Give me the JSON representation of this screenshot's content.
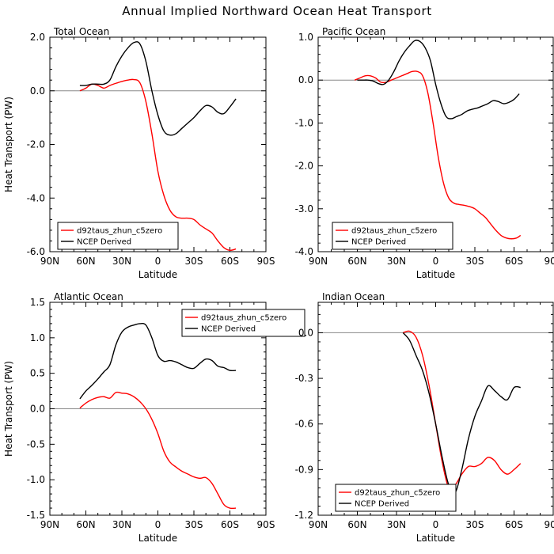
{
  "figure_title": "Annual Implied Northward Ocean Heat Transport",
  "colors": {
    "model": "#ff0000",
    "observed": "#000000",
    "zero_line": "#888888"
  },
  "chart_data": [
    {
      "type": "line",
      "title": "Total Ocean",
      "xlabel": "Latitude",
      "ylabel": "Heat Transport (PW)",
      "xlim": [
        90,
        -90
      ],
      "ylim": [
        -6.0,
        2.0
      ],
      "x_ticks": [
        90,
        60,
        30,
        0,
        -30,
        -60,
        -90
      ],
      "x_tick_labels": [
        "90N",
        "60N",
        "30N",
        "0",
        "30S",
        "60S",
        "90S"
      ],
      "y_ticks": [
        2.0,
        0.0,
        -2.0,
        -4.0,
        -6.0
      ],
      "y_tick_labels": [
        "2.0",
        "0.0",
        "-2.0",
        "-4.0",
        "-6.0"
      ],
      "series": [
        {
          "name": "d92taus_zhun_c5zero",
          "color": "#ff0000",
          "x": [
            65,
            60,
            55,
            50,
            45,
            40,
            35,
            30,
            25,
            20,
            15,
            10,
            5,
            0,
            -5,
            -10,
            -15,
            -20,
            -25,
            -30,
            -35,
            -40,
            -45,
            -50,
            -55,
            -60,
            -65
          ],
          "y": [
            0.0,
            0.1,
            0.25,
            0.2,
            0.1,
            0.2,
            0.28,
            0.35,
            0.4,
            0.42,
            0.3,
            -0.4,
            -1.6,
            -3.0,
            -3.9,
            -4.45,
            -4.7,
            -4.75,
            -4.75,
            -4.8,
            -5.0,
            -5.15,
            -5.3,
            -5.6,
            -5.85,
            -5.95,
            -5.9
          ]
        },
        {
          "name": "NCEP Derived",
          "color": "#000000",
          "x": [
            65,
            60,
            55,
            50,
            45,
            40,
            35,
            30,
            25,
            20,
            15,
            10,
            5,
            0,
            -5,
            -10,
            -15,
            -20,
            -25,
            -30,
            -35,
            -40,
            -45,
            -50,
            -55,
            -60,
            -65
          ],
          "y": [
            0.2,
            0.2,
            0.25,
            0.25,
            0.25,
            0.4,
            0.9,
            1.3,
            1.6,
            1.8,
            1.75,
            1.1,
            0.0,
            -0.9,
            -1.5,
            -1.65,
            -1.6,
            -1.4,
            -1.2,
            -1.0,
            -0.75,
            -0.55,
            -0.6,
            -0.8,
            -0.85,
            -0.6,
            -0.3
          ]
        }
      ]
    },
    {
      "type": "line",
      "title": "Pacific Ocean",
      "xlabel": "Latitude",
      "ylabel": "",
      "xlim": [
        90,
        -90
      ],
      "ylim": [
        -4.0,
        1.0
      ],
      "x_ticks": [
        90,
        60,
        30,
        0,
        -30,
        -60,
        -90
      ],
      "x_tick_labels": [
        "90N",
        "60N",
        "30N",
        "0",
        "30S",
        "60S",
        "90S"
      ],
      "y_ticks": [
        1.0,
        0.0,
        -1.0,
        -2.0,
        -3.0,
        -4.0
      ],
      "y_tick_labels": [
        "1.0",
        "0.0",
        "-1.0",
        "-2.0",
        "-3.0",
        "-4.0"
      ],
      "series": [
        {
          "name": "d92taus_zhun_c5zero",
          "color": "#ff0000",
          "x": [
            62,
            58,
            54,
            50,
            46,
            42,
            38,
            34,
            30,
            26,
            22,
            18,
            14,
            10,
            6,
            2,
            -2,
            -6,
            -10,
            -14,
            -18,
            -22,
            -26,
            -30,
            -34,
            -38,
            -42,
            -46,
            -50,
            -54,
            -58,
            -62,
            -65
          ],
          "y": [
            0.0,
            0.05,
            0.1,
            0.1,
            0.05,
            -0.05,
            -0.05,
            0.0,
            0.05,
            0.1,
            0.15,
            0.2,
            0.2,
            0.1,
            -0.3,
            -1.0,
            -1.8,
            -2.4,
            -2.75,
            -2.87,
            -2.9,
            -2.92,
            -2.95,
            -3.0,
            -3.1,
            -3.2,
            -3.35,
            -3.5,
            -3.62,
            -3.68,
            -3.7,
            -3.68,
            -3.62
          ]
        },
        {
          "name": "NCEP Derived",
          "color": "#000000",
          "x": [
            60,
            56,
            52,
            48,
            44,
            40,
            36,
            32,
            28,
            24,
            20,
            16,
            12,
            8,
            4,
            0,
            -4,
            -8,
            -12,
            -16,
            -20,
            -24,
            -28,
            -32,
            -36,
            -40,
            -44,
            -48,
            -52,
            -56,
            -60,
            -64
          ],
          "y": [
            0.0,
            0.0,
            0.0,
            -0.02,
            -0.08,
            -0.1,
            0.0,
            0.2,
            0.45,
            0.65,
            0.8,
            0.92,
            0.9,
            0.75,
            0.45,
            -0.1,
            -0.55,
            -0.85,
            -0.9,
            -0.85,
            -0.8,
            -0.72,
            -0.68,
            -0.65,
            -0.6,
            -0.55,
            -0.48,
            -0.5,
            -0.55,
            -0.52,
            -0.45,
            -0.32
          ]
        }
      ]
    },
    {
      "type": "line",
      "title": "Atlantic Ocean",
      "xlabel": "Latitude",
      "ylabel": "Heat Transport (PW)",
      "xlim": [
        90,
        -90
      ],
      "ylim": [
        -1.5,
        1.5
      ],
      "x_ticks": [
        90,
        60,
        30,
        0,
        -30,
        -60,
        -90
      ],
      "x_tick_labels": [
        "90N",
        "60N",
        "30N",
        "0",
        "30S",
        "60S",
        "90S"
      ],
      "y_ticks": [
        1.5,
        1.0,
        0.5,
        0.0,
        -0.5,
        -1.0,
        -1.5
      ],
      "y_tick_labels": [
        "1.5",
        "1.0",
        "0.5",
        "0.0",
        "-0.5",
        "-1.0",
        "-1.5"
      ],
      "series": [
        {
          "name": "d92taus_zhun_c5zero",
          "color": "#ff0000",
          "x": [
            65,
            60,
            55,
            50,
            45,
            40,
            35,
            30,
            25,
            20,
            15,
            10,
            5,
            0,
            -5,
            -10,
            -15,
            -20,
            -25,
            -30,
            -35,
            -40,
            -45,
            -50,
            -55,
            -60,
            -65
          ],
          "y": [
            0.01,
            0.08,
            0.13,
            0.16,
            0.17,
            0.15,
            0.23,
            0.22,
            0.21,
            0.17,
            0.1,
            0.0,
            -0.15,
            -0.35,
            -0.6,
            -0.75,
            -0.82,
            -0.88,
            -0.92,
            -0.96,
            -0.98,
            -0.97,
            -1.05,
            -1.2,
            -1.35,
            -1.4,
            -1.4
          ]
        },
        {
          "name": "NCEP Derived",
          "color": "#000000",
          "x": [
            65,
            60,
            55,
            50,
            45,
            40,
            35,
            30,
            25,
            20,
            15,
            10,
            5,
            0,
            -5,
            -10,
            -15,
            -20,
            -25,
            -30,
            -35,
            -40,
            -45,
            -50,
            -55,
            -60,
            -65
          ],
          "y": [
            0.14,
            0.25,
            0.33,
            0.42,
            0.52,
            0.62,
            0.9,
            1.08,
            1.15,
            1.18,
            1.2,
            1.18,
            1.0,
            0.75,
            0.67,
            0.68,
            0.66,
            0.62,
            0.58,
            0.57,
            0.64,
            0.7,
            0.68,
            0.6,
            0.58,
            0.54,
            0.54
          ]
        }
      ]
    },
    {
      "type": "line",
      "title": "Indian Ocean",
      "xlabel": "Latitude",
      "ylabel": "",
      "xlim": [
        90,
        -90
      ],
      "ylim": [
        -1.2,
        0.2
      ],
      "x_ticks": [
        90,
        60,
        30,
        0,
        -30,
        -60,
        -90
      ],
      "x_tick_labels": [
        "90N",
        "60N",
        "30N",
        "0",
        "30S",
        "60S",
        "90S"
      ],
      "y_ticks": [
        0.0,
        -0.3,
        -0.6,
        -0.9,
        -1.2
      ],
      "y_tick_labels": [
        "0.0",
        "-0.3",
        "-0.6",
        "-0.9",
        "-1.2"
      ],
      "series": [
        {
          "name": "d92taus_zhun_c5zero",
          "color": "#ff0000",
          "x": [
            25,
            20,
            15,
            10,
            5,
            0,
            -5,
            -10,
            -15,
            -20,
            -25,
            -30,
            -35,
            -40,
            -45,
            -50,
            -55,
            -60,
            -65
          ],
          "y": [
            0.0,
            0.01,
            -0.03,
            -0.15,
            -0.35,
            -0.6,
            -0.85,
            -1.02,
            -1.0,
            -0.93,
            -0.88,
            -0.88,
            -0.86,
            -0.82,
            -0.84,
            -0.9,
            -0.93,
            -0.9,
            -0.86
          ]
        },
        {
          "name": "NCEP Derived",
          "color": "#000000",
          "x": [
            25,
            20,
            15,
            10,
            5,
            0,
            -5,
            -10,
            -15,
            -20,
            -25,
            -30,
            -35,
            -40,
            -45,
            -50,
            -55,
            -60,
            -65
          ],
          "y": [
            0.0,
            -0.05,
            -0.15,
            -0.25,
            -0.4,
            -0.6,
            -0.82,
            -1.0,
            -1.05,
            -0.9,
            -0.7,
            -0.55,
            -0.45,
            -0.35,
            -0.38,
            -0.42,
            -0.44,
            -0.36,
            -0.36
          ]
        }
      ]
    }
  ]
}
